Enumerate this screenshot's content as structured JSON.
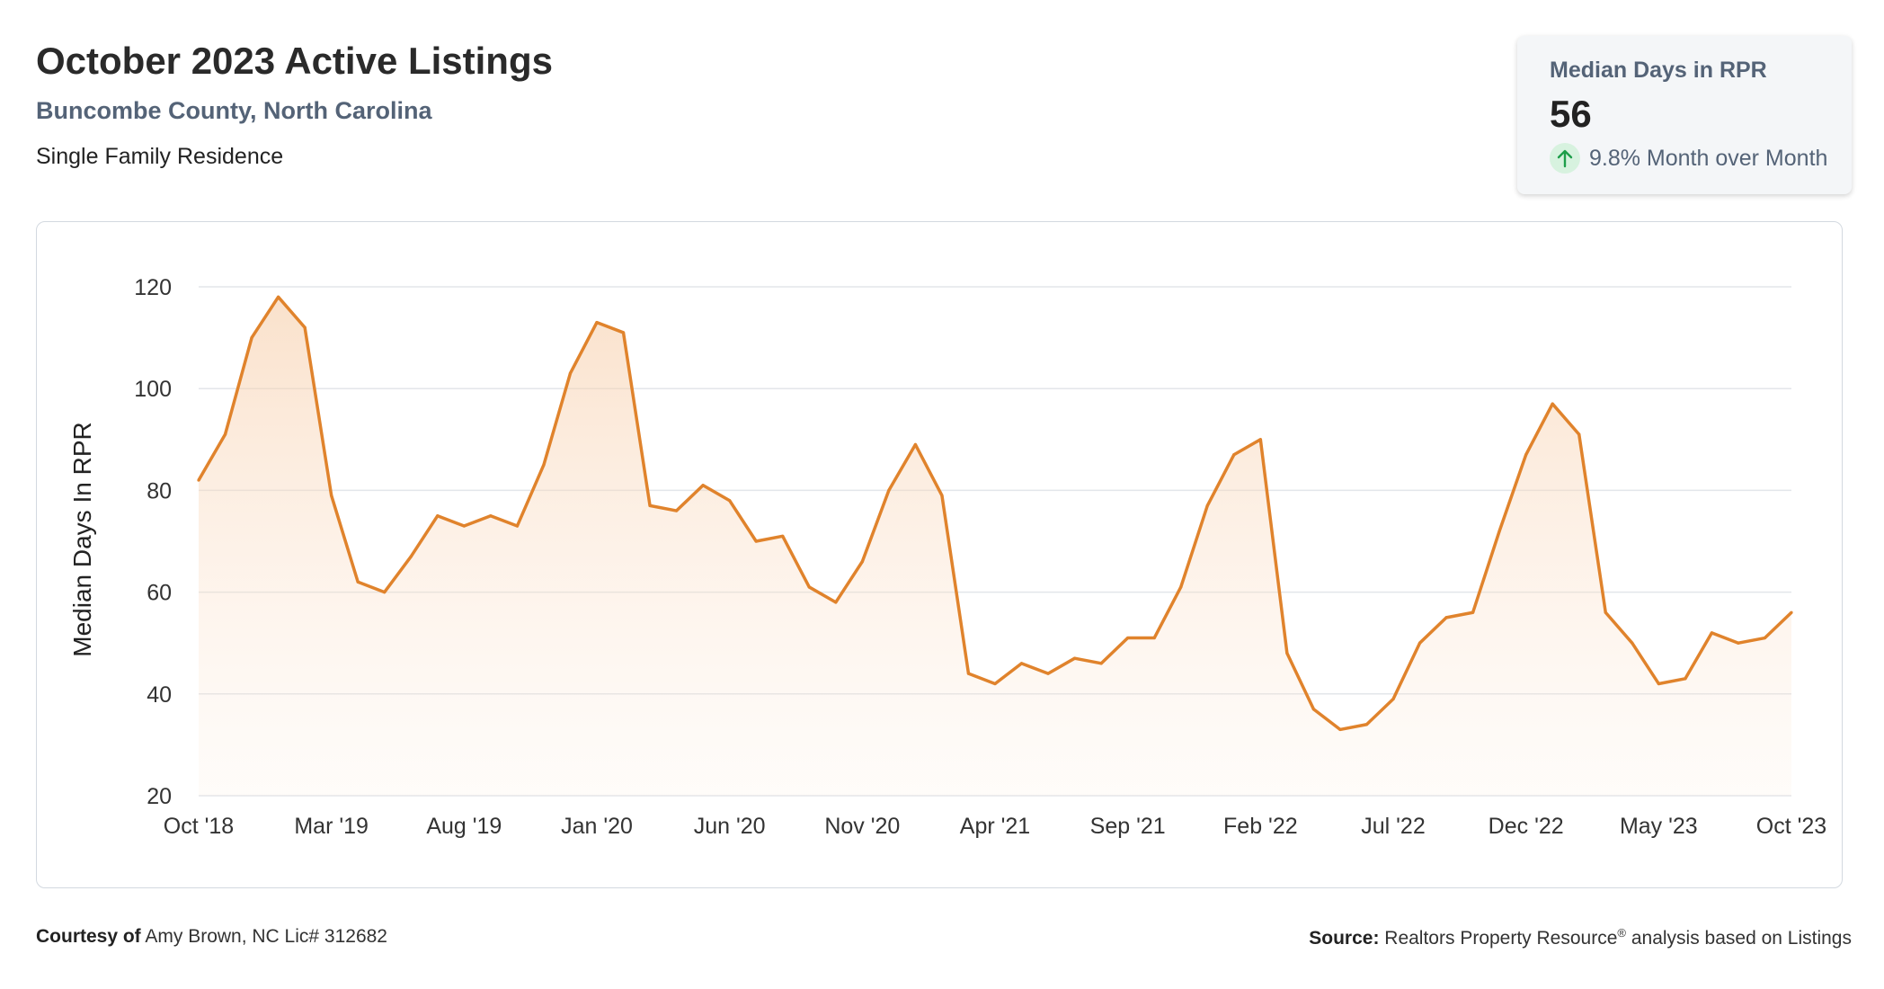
{
  "header": {
    "title": "October 2023 Active Listings",
    "location": "Buncombe County, North Carolina",
    "property_type": "Single Family Residence"
  },
  "metric_card": {
    "label": "Median Days in RPR",
    "value": "56",
    "change_text": "9.8% Month over Month",
    "change_direction": "up",
    "change_icon": "arrow-up-icon",
    "positive_color": "#1e9e4a"
  },
  "chart_data": {
    "type": "area",
    "ylabel": "Median Days In RPR",
    "ylim": [
      20,
      120
    ],
    "yticks": [
      20,
      40,
      60,
      80,
      100,
      120
    ],
    "grid": true,
    "line_color": "#e0832c",
    "x_tick_labels": [
      "Oct '18",
      "Mar '19",
      "Aug '19",
      "Jan '20",
      "Jun '20",
      "Nov '20",
      "Apr '21",
      "Sep '21",
      "Feb '22",
      "Jul '22",
      "Dec '22",
      "May '23",
      "Oct '23"
    ],
    "months": [
      "2018-10",
      "2018-11",
      "2018-12",
      "2019-01",
      "2019-02",
      "2019-03",
      "2019-04",
      "2019-05",
      "2019-06",
      "2019-07",
      "2019-08",
      "2019-09",
      "2019-10",
      "2019-11",
      "2019-12",
      "2020-01",
      "2020-02",
      "2020-03",
      "2020-04",
      "2020-05",
      "2020-06",
      "2020-07",
      "2020-08",
      "2020-09",
      "2020-10",
      "2020-11",
      "2020-12",
      "2021-01",
      "2021-02",
      "2021-03",
      "2021-04",
      "2021-05",
      "2021-06",
      "2021-07",
      "2021-08",
      "2021-09",
      "2021-10",
      "2021-11",
      "2021-12",
      "2022-01",
      "2022-02",
      "2022-03",
      "2022-04",
      "2022-05",
      "2022-06",
      "2022-07",
      "2022-08",
      "2022-09",
      "2022-10",
      "2022-11",
      "2022-12",
      "2023-01",
      "2023-02",
      "2023-03",
      "2023-04",
      "2023-05",
      "2023-06",
      "2023-07",
      "2023-08",
      "2023-09",
      "2023-10"
    ],
    "values": [
      82,
      91,
      110,
      118,
      112,
      79,
      62,
      60,
      67,
      75,
      73,
      75,
      73,
      85,
      103,
      113,
      111,
      77,
      76,
      81,
      78,
      70,
      71,
      61,
      58,
      66,
      80,
      89,
      79,
      44,
      42,
      46,
      44,
      47,
      46,
      51,
      51,
      61,
      77,
      87,
      90,
      48,
      37,
      33,
      34,
      39,
      50,
      55,
      56,
      72,
      87,
      97,
      91,
      56,
      50,
      42,
      43,
      52,
      50,
      51,
      56
    ]
  },
  "footer": {
    "courtesy_label": "Courtesy of",
    "courtesy_text": " Amy Brown, NC Lic# 312682",
    "source_label": "Source:",
    "source_text_1": " Realtors Property Resource",
    "source_reg": "®",
    "source_text_2": " analysis based on Listings"
  }
}
